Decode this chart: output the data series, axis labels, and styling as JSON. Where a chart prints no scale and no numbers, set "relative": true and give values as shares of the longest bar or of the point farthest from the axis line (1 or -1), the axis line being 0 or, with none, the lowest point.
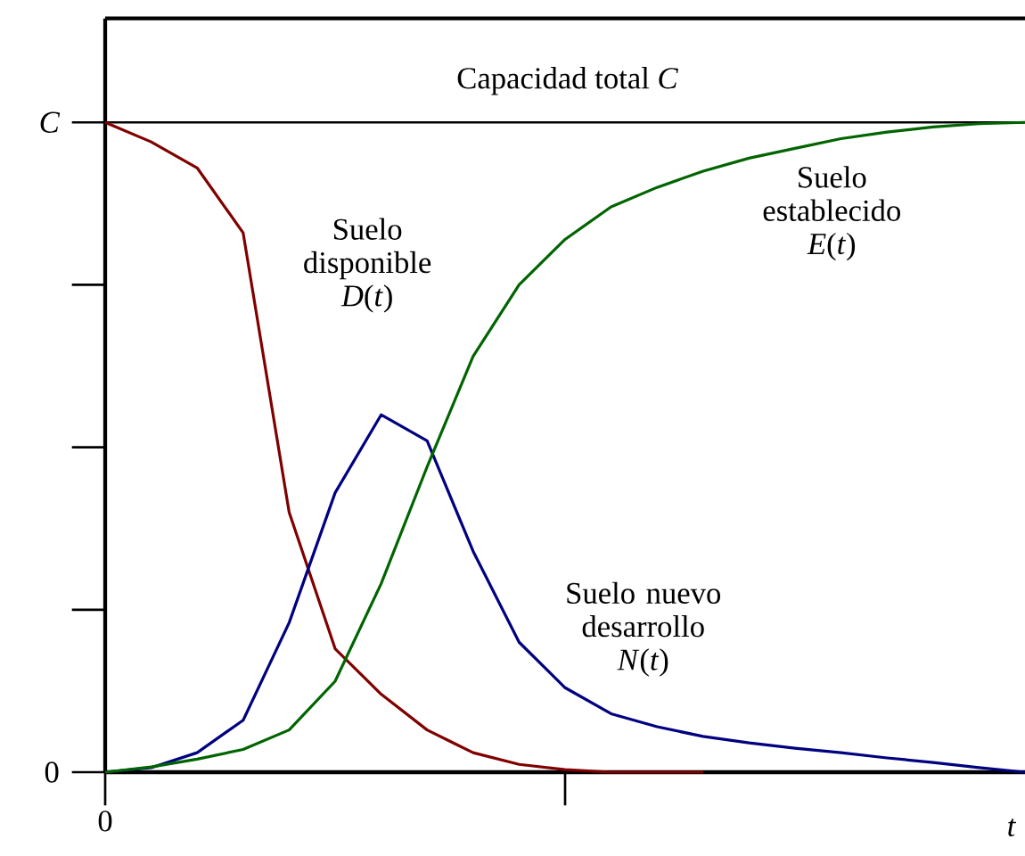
{
  "chart_data": {
    "type": "line",
    "xlabel": "t",
    "relative": true,
    "annotations": [
      "C",
      "0",
      "0"
    ],
    "categories": [
      null,
      null,
      null,
      null,
      null,
      null,
      null,
      null,
      null,
      null,
      null,
      null,
      null,
      null,
      null,
      null,
      null,
      null,
      null,
      null,
      null
    ],
    "ref_lines": [
      {
        "axis": "y",
        "value": 1,
        "label": "Capacidad total *C*",
        "color": "#000000"
      }
    ],
    "series": [
      {
        "name": "Suelo disponible *D*(*t*)",
        "color": "#800000",
        "values": [
          1.0,
          0.97,
          0.93,
          0.83,
          0.4,
          0.19,
          0.12,
          0.065,
          0.03,
          0.012,
          0.004,
          0,
          0,
          0,
          null,
          null,
          null,
          null,
          null,
          null,
          null
        ]
      },
      {
        "name": "Suelo nuevo desarrollo *N*(*t*)",
        "color": "#000080",
        "values": [
          0,
          0.007,
          0.03,
          0.08,
          0.23,
          0.43,
          0.55,
          0.51,
          0.34,
          0.2,
          0.13,
          0.09,
          0.07,
          0.055,
          0.045,
          0.037,
          0.03,
          0.022,
          0.015,
          0.007,
          0
        ]
      },
      {
        "name": "Suelo establecido *E*(*t*)",
        "color": "#006400",
        "values": [
          0,
          0.008,
          0.02,
          0.035,
          0.065,
          0.14,
          0.29,
          0.47,
          0.64,
          0.75,
          0.82,
          0.87,
          0.9,
          0.925,
          0.945,
          0.96,
          0.975,
          0.985,
          0.993,
          0.998,
          1.0
        ]
      }
    ]
  }
}
